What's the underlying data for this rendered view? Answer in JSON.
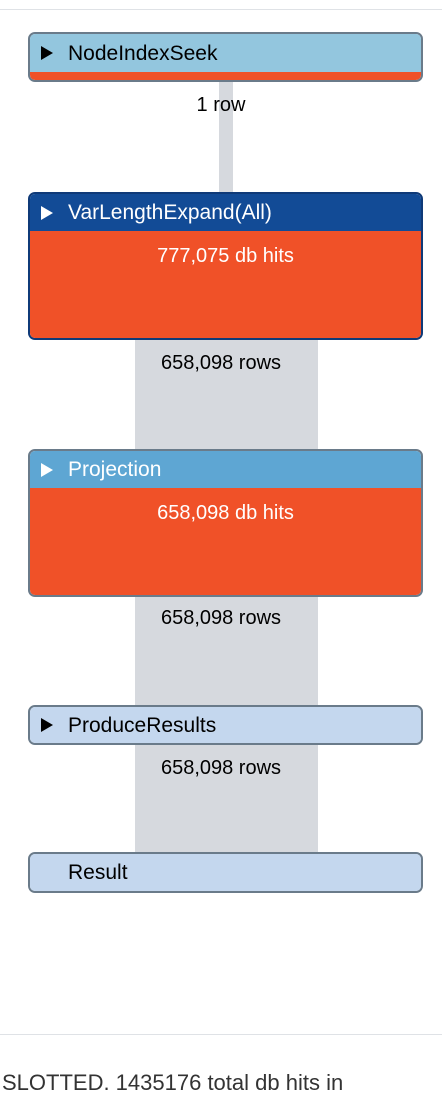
{
  "plan": {
    "operators": [
      {
        "name": "NodeIndexSeek",
        "db_hits": "",
        "rows_below": "1 row"
      },
      {
        "name": "VarLengthExpand(All)",
        "db_hits": "777,075 db hits",
        "rows_below": "658,098 rows"
      },
      {
        "name": "Projection",
        "db_hits": "658,098 db hits",
        "rows_below": "658,098 rows"
      },
      {
        "name": "ProduceResults",
        "db_hits": "",
        "rows_below": "658,098 rows"
      },
      {
        "name": "Result",
        "db_hits": "",
        "rows_below": ""
      }
    ]
  },
  "footer": {
    "summary": "SLOTTED. 1435176 total db hits in"
  },
  "colors": {
    "seek_header": "#93c6de",
    "expand_header": "#124b96",
    "projection_header": "#5ea6d3",
    "produce_header": "#c4d7ee",
    "result_header": "#c4d7ee",
    "db_hits_fill": "#f05128",
    "flow_band": "#d6d9de"
  }
}
